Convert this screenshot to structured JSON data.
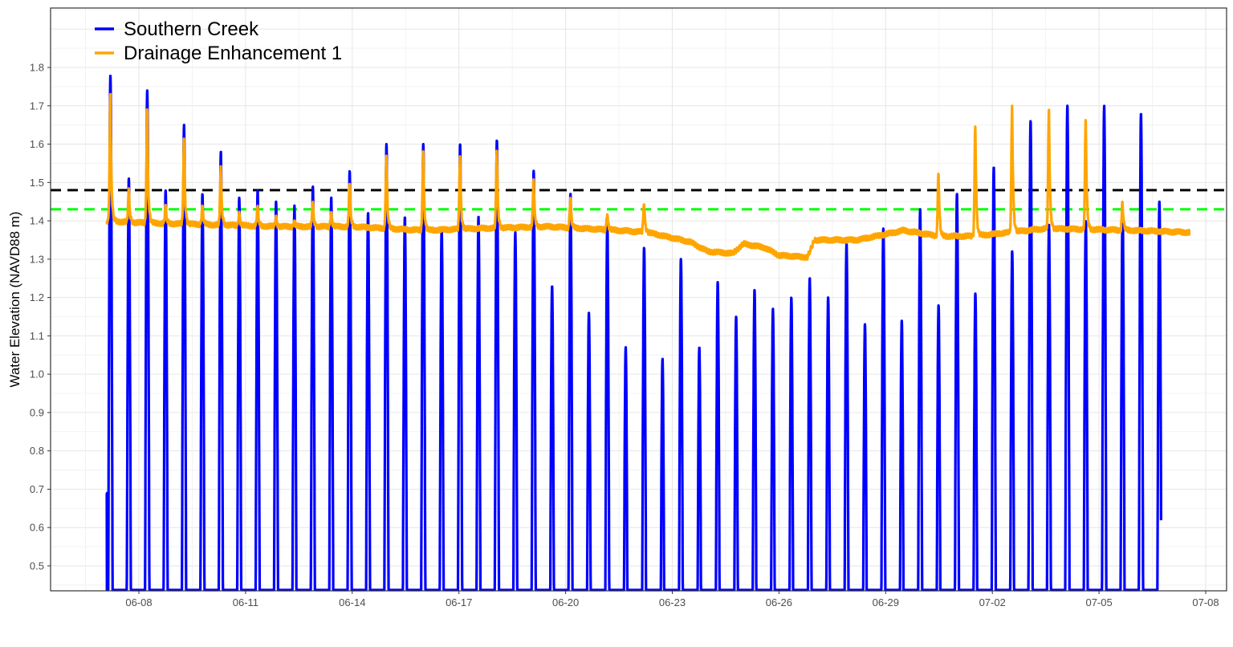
{
  "chart_data": {
    "type": "line",
    "title": "",
    "xlabel": "",
    "ylabel": "Water Elevation (NAVD88 m)",
    "x_axis": {
      "type": "date",
      "start": "06-07",
      "end": "07-08",
      "ticks": [
        "06-08",
        "06-11",
        "06-14",
        "06-17",
        "06-20",
        "06-23",
        "06-26",
        "06-29",
        "07-02",
        "07-05",
        "07-08"
      ]
    },
    "y_axis": {
      "ticks": [
        "0.5",
        "0.6",
        "0.7",
        "0.8",
        "0.9",
        "1.0",
        "1.1",
        "1.2",
        "1.3",
        "1.4",
        "1.5",
        "1.6",
        "1.7",
        "1.8"
      ],
      "ylim": [
        0.435,
        1.955
      ]
    },
    "grid": true,
    "legend_position": "top-left",
    "series": [
      {
        "name": "Southern Creek",
        "color": "#0000ff",
        "start_value": 0.69,
        "tidal_high_water_peaks": [
          1.78,
          1.51,
          1.74,
          1.48,
          1.65,
          1.47,
          1.58,
          1.46,
          1.48,
          1.45,
          1.44,
          1.49,
          1.46,
          1.53,
          1.42,
          1.6,
          1.41,
          1.6,
          1.38,
          1.6,
          1.41,
          1.61,
          1.37,
          1.53,
          1.23,
          1.47,
          1.16,
          1.4,
          1.07,
          1.33,
          1.04,
          1.3,
          1.07,
          1.24,
          1.15,
          1.22,
          1.17,
          1.2,
          1.25,
          1.2,
          1.34,
          1.13,
          1.38,
          1.14,
          1.43,
          1.18,
          1.47,
          1.21,
          1.54,
          1.32,
          1.66,
          1.39,
          1.7,
          1.4,
          1.7,
          1.43,
          1.68,
          1.45
        ],
        "low_water": "below 0.435 (off-scale)"
      },
      {
        "name": "Drainage Enhancement 1",
        "color": "#ffa500",
        "peak_values": [
          1.73,
          1.48,
          1.69,
          1.44,
          1.61,
          1.44,
          1.54,
          1.42,
          1.44,
          1.41,
          1.4,
          1.45,
          1.42,
          1.5,
          1.57,
          1.58,
          1.57,
          1.59,
          1.51,
          1.46,
          1.42,
          1.45,
          1.53,
          1.65,
          1.7,
          1.69,
          1.67,
          1.45
        ],
        "baseline_start": 1.4,
        "baseline_min": 1.3,
        "baseline_end": 1.37
      }
    ],
    "reference_lines": [
      {
        "value": 1.48,
        "color": "#000000",
        "style": "dashed"
      },
      {
        "value": 1.43,
        "color": "#00ff00",
        "style": "dashed"
      }
    ]
  }
}
